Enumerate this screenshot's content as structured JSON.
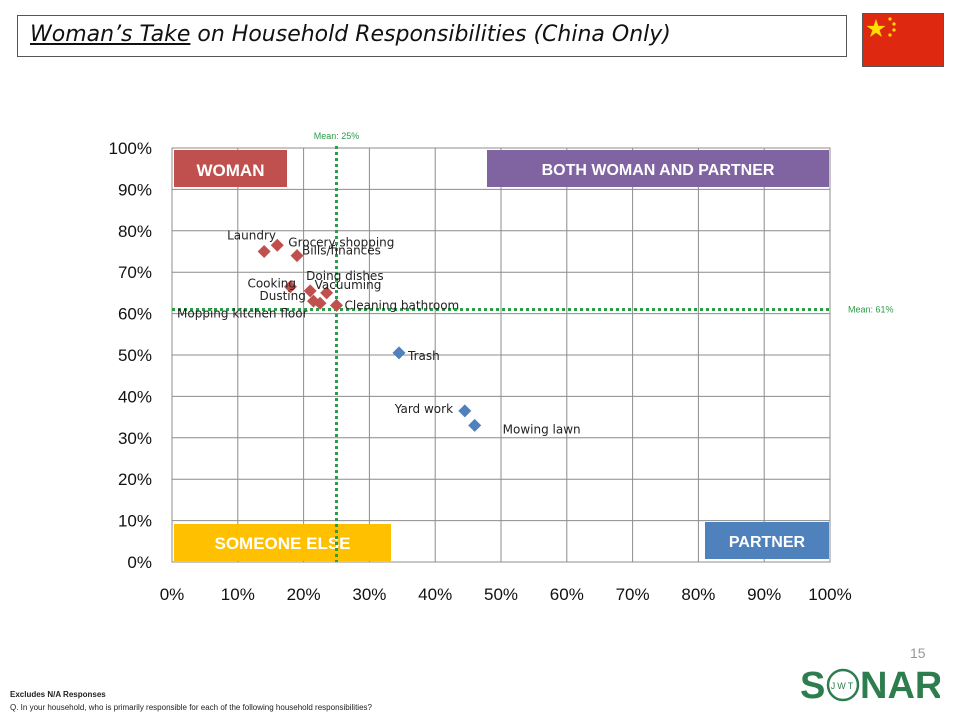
{
  "title": {
    "underlined": "Woman’s Take",
    "rest": " on Household Responsibilities (China Only)"
  },
  "colors": {
    "woman": "#c0504d",
    "partner": "#4f81bd",
    "both": "#8064a2",
    "someone": "#ffc000",
    "mean": "#2a9d48",
    "flag": "#de2910",
    "star": "#ffde00",
    "logo_green": "#2e7d4f"
  },
  "chart_data": {
    "type": "scatter",
    "xlim": [
      0,
      100
    ],
    "ylim": [
      0,
      100
    ],
    "x_ticks": [
      "0%",
      "10%",
      "20%",
      "30%",
      "40%",
      "50%",
      "60%",
      "70%",
      "80%",
      "90%",
      "100%"
    ],
    "y_ticks": [
      "0%",
      "10%",
      "20%",
      "30%",
      "40%",
      "50%",
      "60%",
      "70%",
      "80%",
      "90%",
      "100%"
    ],
    "grid": true,
    "mean_x": {
      "value": 25,
      "label": "Mean: 25%"
    },
    "mean_y": {
      "value": 61,
      "label": "Mean: 61%"
    },
    "quadrants": {
      "top_left": "WOMAN",
      "top_right": "BOTH WOMAN AND PARTNER",
      "bottom_left": "SOMEONE ELSE",
      "bottom_right": "PARTNER"
    },
    "points": [
      {
        "label": "Laundry",
        "x": 14,
        "y": 75,
        "group": "woman"
      },
      {
        "label": "Grocery shopping",
        "x": 16,
        "y": 76.5,
        "group": "woman"
      },
      {
        "label": "Bills/finances",
        "x": 19,
        "y": 74,
        "group": "woman"
      },
      {
        "label": "Cooking",
        "x": 18,
        "y": 66.5,
        "group": "woman"
      },
      {
        "label": "Doing dishes",
        "x": 21,
        "y": 65.5,
        "group": "woman"
      },
      {
        "label": "Vacuuming",
        "x": 23.5,
        "y": 65,
        "group": "woman"
      },
      {
        "label": "Dusting",
        "x": 21.5,
        "y": 63,
        "group": "woman"
      },
      {
        "label": "Cleaning bathroom",
        "x": 25,
        "y": 62,
        "group": "woman"
      },
      {
        "label": "Mopping kitchen floor",
        "x": 22.5,
        "y": 62.5,
        "group": "woman"
      },
      {
        "label": "Trash",
        "x": 34.5,
        "y": 50.5,
        "group": "partner"
      },
      {
        "label": "Yard work",
        "x": 44.5,
        "y": 36.5,
        "group": "partner"
      },
      {
        "label": "Mowing lawn",
        "x": 46,
        "y": 33,
        "group": "partner"
      }
    ]
  },
  "page_number": "15",
  "footnotes": [
    "Excludes N/A Responses",
    "Q. In your household, who is primarily responsible for each of the following household responsibilities?"
  ],
  "logo": {
    "text_left": "S",
    "text_right": "NAR",
    "ring_text": "JWT"
  }
}
